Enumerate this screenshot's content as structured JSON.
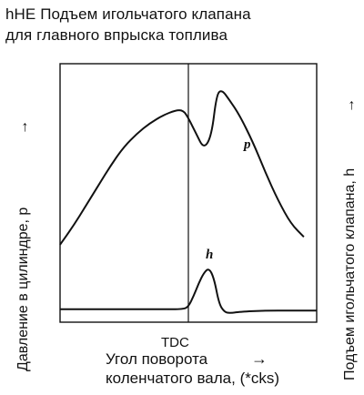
{
  "chart_data": {
    "type": "line",
    "title_lines": [
      "hHE Подъем игольчатого клапана",
      "для главного впрыска топлива"
    ],
    "ylabel_left": "Давление в цилиндре, p",
    "ylabel_right": "Подъем игольчатого клапана, h",
    "xlabel_lines": [
      "Угол поворота",
      "коленчатого вала, (*cks)"
    ],
    "x_tick_labels": [
      "TDC"
    ],
    "axis_arrow_glyph": "→",
    "grid": false,
    "legend": "none",
    "line_color": "#111111",
    "series": [
      {
        "name": "p",
        "x": [
          0,
          0.05,
          0.1,
          0.15,
          0.2,
          0.25,
          0.3,
          0.35,
          0.4,
          0.45,
          0.48,
          0.5,
          0.53,
          0.56,
          0.59,
          0.61,
          0.63,
          0.66,
          0.7,
          0.75,
          0.8,
          0.85,
          0.9,
          0.95
        ],
        "values": [
          0.3,
          0.37,
          0.45,
          0.53,
          0.61,
          0.68,
          0.73,
          0.77,
          0.8,
          0.82,
          0.82,
          0.79,
          0.73,
          0.67,
          0.72,
          0.88,
          0.9,
          0.86,
          0.8,
          0.7,
          0.58,
          0.47,
          0.38,
          0.33
        ]
      },
      {
        "name": "h",
        "x": [
          0,
          0.1,
          0.2,
          0.3,
          0.4,
          0.48,
          0.5,
          0.52,
          0.54,
          0.56,
          0.58,
          0.6,
          0.62,
          0.64,
          0.66,
          0.7,
          0.8,
          0.9,
          1.0
        ],
        "values": [
          0.05,
          0.05,
          0.05,
          0.05,
          0.05,
          0.05,
          0.06,
          0.1,
          0.15,
          0.19,
          0.21,
          0.17,
          0.07,
          0.04,
          0.035,
          0.04,
          0.045,
          0.045,
          0.045
        ]
      }
    ],
    "tdc_x": 0.5
  }
}
